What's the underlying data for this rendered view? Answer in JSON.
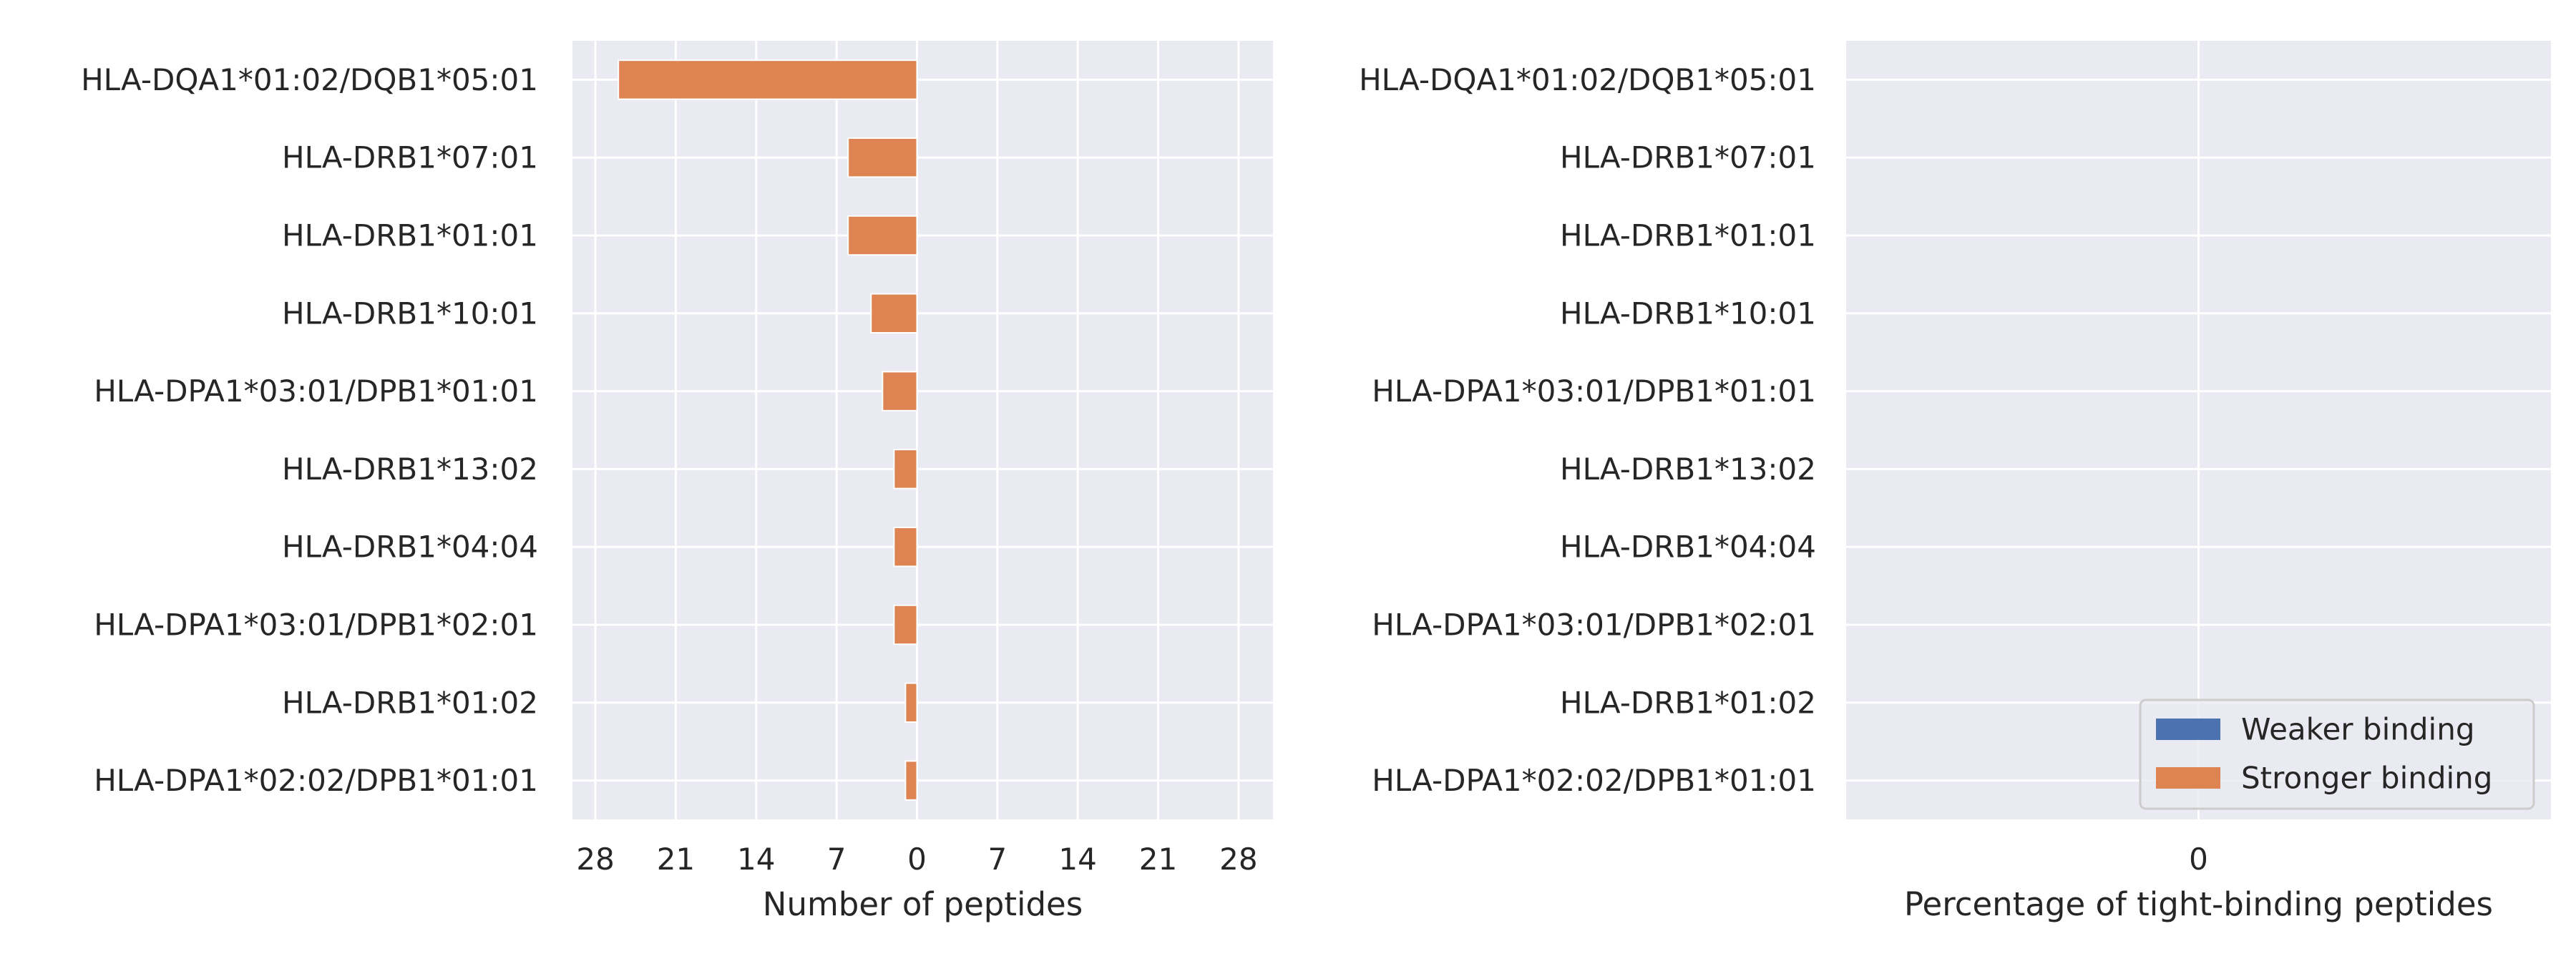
{
  "chart_data": [
    {
      "type": "bar",
      "orientation": "horizontal",
      "diverging": true,
      "categories": [
        "HLA-DQA1*01:02/DQB1*05:01",
        "HLA-DRB1*07:01",
        "HLA-DRB1*01:01",
        "HLA-DRB1*10:01",
        "HLA-DPA1*03:01/DPB1*01:01",
        "HLA-DRB1*13:02",
        "HLA-DRB1*04:04",
        "HLA-DPA1*03:01/DPB1*02:01",
        "HLA-DRB1*01:02",
        "HLA-DPA1*02:02/DPB1*01:01"
      ],
      "series": [
        {
          "name": "Weaker binding",
          "color": "#4C72B0",
          "values": [
            0,
            0,
            0,
            0,
            0,
            0,
            0,
            0,
            0,
            0
          ]
        },
        {
          "name": "Stronger binding",
          "color": "#DD8452",
          "values": [
            26,
            6,
            6,
            4,
            3,
            2,
            2,
            2,
            1,
            1
          ]
        }
      ],
      "xlabel": "Number of peptides",
      "xticks": [
        "28",
        "21",
        "14",
        "7",
        "0",
        "7",
        "14",
        "21",
        "28"
      ],
      "xlim": [
        -30,
        31
      ],
      "grid": true
    },
    {
      "type": "bar",
      "orientation": "horizontal",
      "categories": [
        "HLA-DQA1*01:02/DQB1*05:01",
        "HLA-DRB1*07:01",
        "HLA-DRB1*01:01",
        "HLA-DRB1*10:01",
        "HLA-DPA1*03:01/DPB1*01:01",
        "HLA-DRB1*13:02",
        "HLA-DRB1*04:04",
        "HLA-DPA1*03:01/DPB1*02:01",
        "HLA-DRB1*01:02",
        "HLA-DPA1*02:02/DPB1*01:01"
      ],
      "series": [
        {
          "name": "Weaker binding",
          "color": "#4C72B0",
          "values": [
            0,
            0,
            0,
            0,
            0,
            0,
            0,
            0,
            0,
            0
          ]
        },
        {
          "name": "Stronger binding",
          "color": "#DD8452",
          "values": [
            0,
            0,
            0,
            0,
            0,
            0,
            0,
            0,
            0,
            0
          ]
        }
      ],
      "xlabel": "Percentage of tight-binding peptides",
      "xticks": [
        "0"
      ],
      "grid": true,
      "legend": {
        "position": "lower-right",
        "entries": [
          {
            "label": "Weaker binding",
            "color": "#4C72B0"
          },
          {
            "label": "Stronger binding",
            "color": "#DD8452"
          }
        ]
      }
    }
  ]
}
